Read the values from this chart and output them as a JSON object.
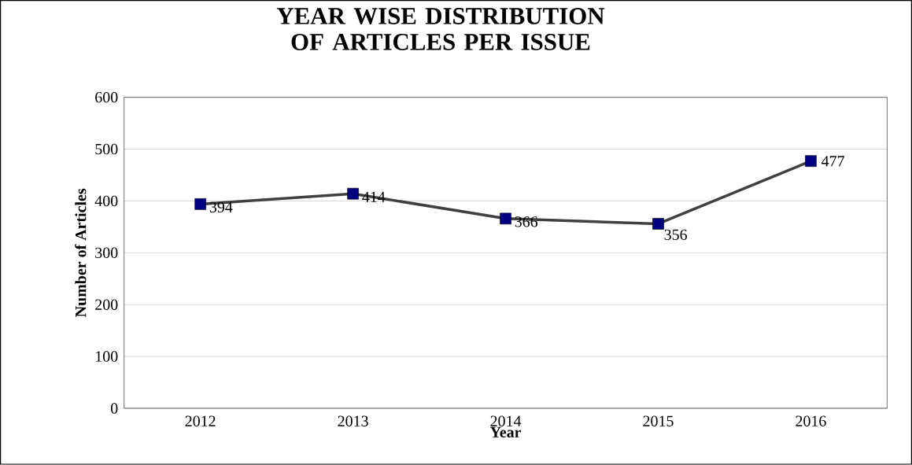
{
  "chart_data": {
    "type": "line",
    "title": "YEAR WISE DISTRIBUTION OF ARTICLES PER ISSUE",
    "xlabel": "Year",
    "ylabel": "Number of Articles",
    "categories": [
      "2012",
      "2013",
      "2014",
      "2015",
      "2016"
    ],
    "series": [
      {
        "color": "#404040",
        "colors": [
          "#000080",
          "#000080",
          "#000080",
          "#000080",
          "#000080"
        ],
        "values": [
          394,
          414,
          366,
          356,
          477
        ]
      }
    ],
    "marker": "square",
    "line_style": "solid",
    "ylim": [
      0,
      600
    ],
    "yticks": [
      0,
      100,
      200,
      300,
      400,
      500,
      600
    ],
    "grid": "y",
    "data_labels": true
  }
}
